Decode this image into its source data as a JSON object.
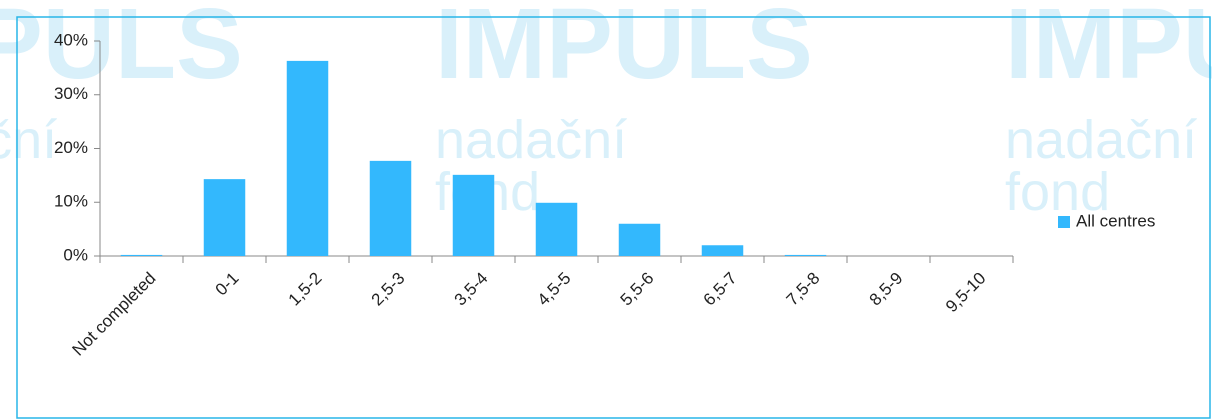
{
  "watermark": {
    "logo": "IMPULS",
    "line1": "nadační",
    "line2": "fond"
  },
  "chart_data": {
    "type": "bar",
    "categories": [
      "Not completed",
      "0-1",
      "1,5-2",
      "2,5-3",
      "3,5-4",
      "4,5-5",
      "5,5-6",
      "6,5-7",
      "7,5-8",
      "8,5-9",
      "9,5-10"
    ],
    "series": [
      {
        "name": "All centres",
        "color": "#33b8fd",
        "values": [
          0.2,
          14.3,
          36.3,
          17.7,
          15.1,
          9.9,
          6.0,
          2.0,
          0.2,
          0,
          0
        ]
      }
    ],
    "ylim": [
      0,
      40
    ],
    "yticks": [
      {
        "value": 0,
        "label": "0%"
      },
      {
        "value": 10,
        "label": "10%"
      },
      {
        "value": 20,
        "label": "20%"
      },
      {
        "value": 30,
        "label": "30%"
      },
      {
        "value": 40,
        "label": "40%"
      }
    ],
    "grid": false,
    "legend": "right"
  }
}
